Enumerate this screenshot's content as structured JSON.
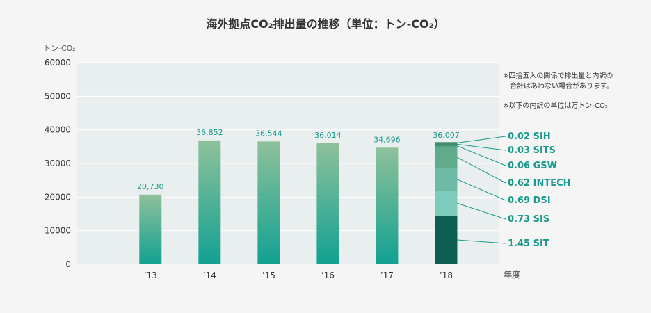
{
  "chart_data": {
    "type": "bar",
    "title": "海外拠点CO₂排出量の推移（単位：トン-CO₂）",
    "ylabel": "トン-CO₂",
    "xlabel": "年度",
    "ylim": [
      0,
      60000
    ],
    "yticks": [
      "0",
      "10000",
      "20000",
      "30000",
      "40000",
      "50000",
      "60000"
    ],
    "categories": [
      "’13",
      "’14",
      "’15",
      "’16",
      "’17",
      "’18"
    ],
    "values": [
      20730,
      36852,
      36544,
      36014,
      34696,
      36007
    ],
    "value_labels": [
      "20,730",
      "36,852",
      "36,544",
      "36,014",
      "34,696",
      "36,007"
    ],
    "breakdown_2018": [
      {
        "name": "SIT",
        "value": 1.45,
        "label": "1.45 SIT",
        "color": "#0d5e52"
      },
      {
        "name": "SIS",
        "value": 0.73,
        "label": "0.73 SIS",
        "color": "#7ccbbd"
      },
      {
        "name": "DSI",
        "value": 0.69,
        "label": "0.69 DSI",
        "color": "#6dbba7"
      },
      {
        "name": "INTECH",
        "value": 0.62,
        "label": "0.62 INTECH",
        "color": "#5fab8b"
      },
      {
        "name": "GSW",
        "value": 0.06,
        "label": "0.06 GSW",
        "color": "#4d9b79"
      },
      {
        "name": "SITS",
        "value": 0.03,
        "label": "0.03 SITS",
        "color": "#3b8b6a"
      },
      {
        "name": "SIH",
        "value": 0.02,
        "label": "0.02 SIH",
        "color": "#2b7b5d"
      }
    ],
    "notes": [
      "※四捨五入の関係で排出量と内訳の",
      "合計はあわない場合があります。",
      "※以下の内訳の単位は万トン-CO₂"
    ],
    "colors": {
      "bar_top": "#8ec19a",
      "bar_bottom": "#11a192",
      "label": "#1a9a8c",
      "plot_bg": "#e9eeee"
    },
    "grid": true
  }
}
